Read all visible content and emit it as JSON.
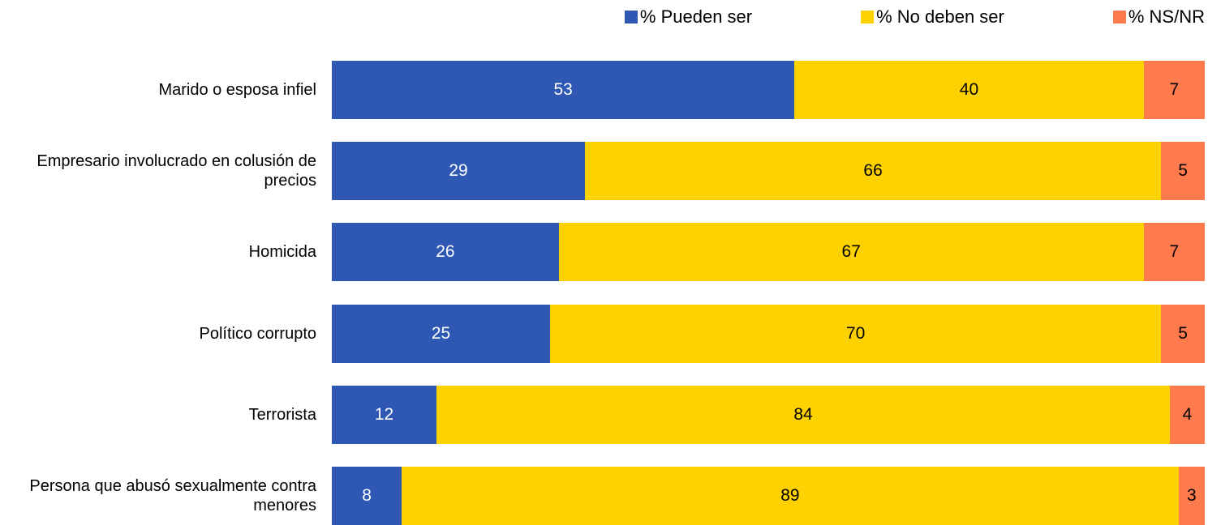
{
  "chart_data": {
    "type": "stacked_bar_horizontal",
    "categories": [
      "Marido o esposa infiel",
      "Empresario involucrado en colusión de precios",
      "Homicida",
      "Político corrupto",
      "Terrorista",
      "Persona que abusó sexualmente contra menores"
    ],
    "series": [
      {
        "name": "% Pueden ser",
        "color": "#2e58b4",
        "values": [
          53,
          29,
          26,
          25,
          12,
          8
        ]
      },
      {
        "name": "% No deben ser",
        "color": "#fed200",
        "values": [
          40,
          66,
          67,
          70,
          84,
          89
        ]
      },
      {
        "name": "% NS/NR",
        "color": "#ff7a4d",
        "values": [
          7,
          5,
          7,
          5,
          4,
          3
        ]
      }
    ],
    "xlim": [
      0,
      100
    ],
    "legend": "top"
  }
}
